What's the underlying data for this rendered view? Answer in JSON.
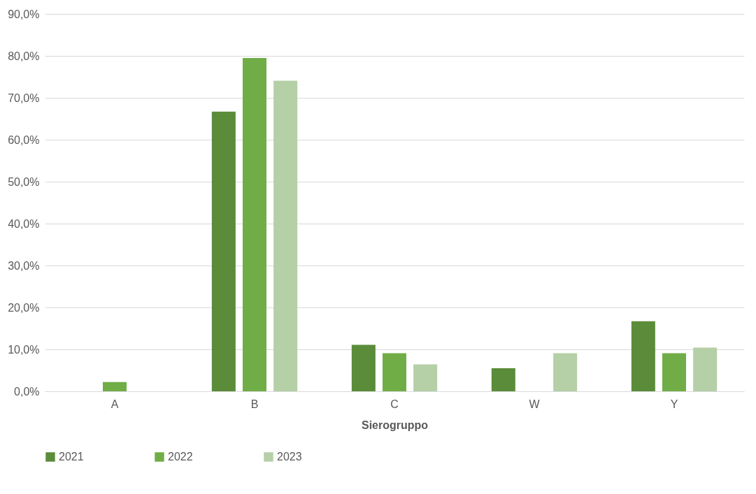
{
  "chart_data": {
    "type": "bar",
    "xlabel": "Sierogruppo",
    "categories": [
      "A",
      "B",
      "C",
      "W",
      "Y"
    ],
    "series": [
      {
        "name": "2021",
        "color": "#5b8c3a",
        "values": [
          0,
          66.7,
          11.1,
          5.5,
          16.7
        ]
      },
      {
        "name": "2022",
        "color": "#70ad47",
        "values": [
          2.2,
          79.5,
          9.1,
          0,
          9.1
        ]
      },
      {
        "name": "2023",
        "color": "#b5cfa6",
        "values": [
          0,
          74.1,
          6.4,
          9.1,
          10.4
        ]
      }
    ],
    "ylim": [
      0,
      90
    ],
    "yticks": [
      {
        "value": 0,
        "label": "0,0%"
      },
      {
        "value": 10,
        "label": "10,0%"
      },
      {
        "value": 20,
        "label": "20,0%"
      },
      {
        "value": 30,
        "label": "30,0%"
      },
      {
        "value": 40,
        "label": "40,0%"
      },
      {
        "value": 50,
        "label": "50,0%"
      },
      {
        "value": 60,
        "label": "60,0%"
      },
      {
        "value": 70,
        "label": "70,0%"
      },
      {
        "value": 80,
        "label": "80,0%"
      },
      {
        "value": 90,
        "label": "90,0%"
      }
    ],
    "grid": "y",
    "legend": "bottom"
  }
}
